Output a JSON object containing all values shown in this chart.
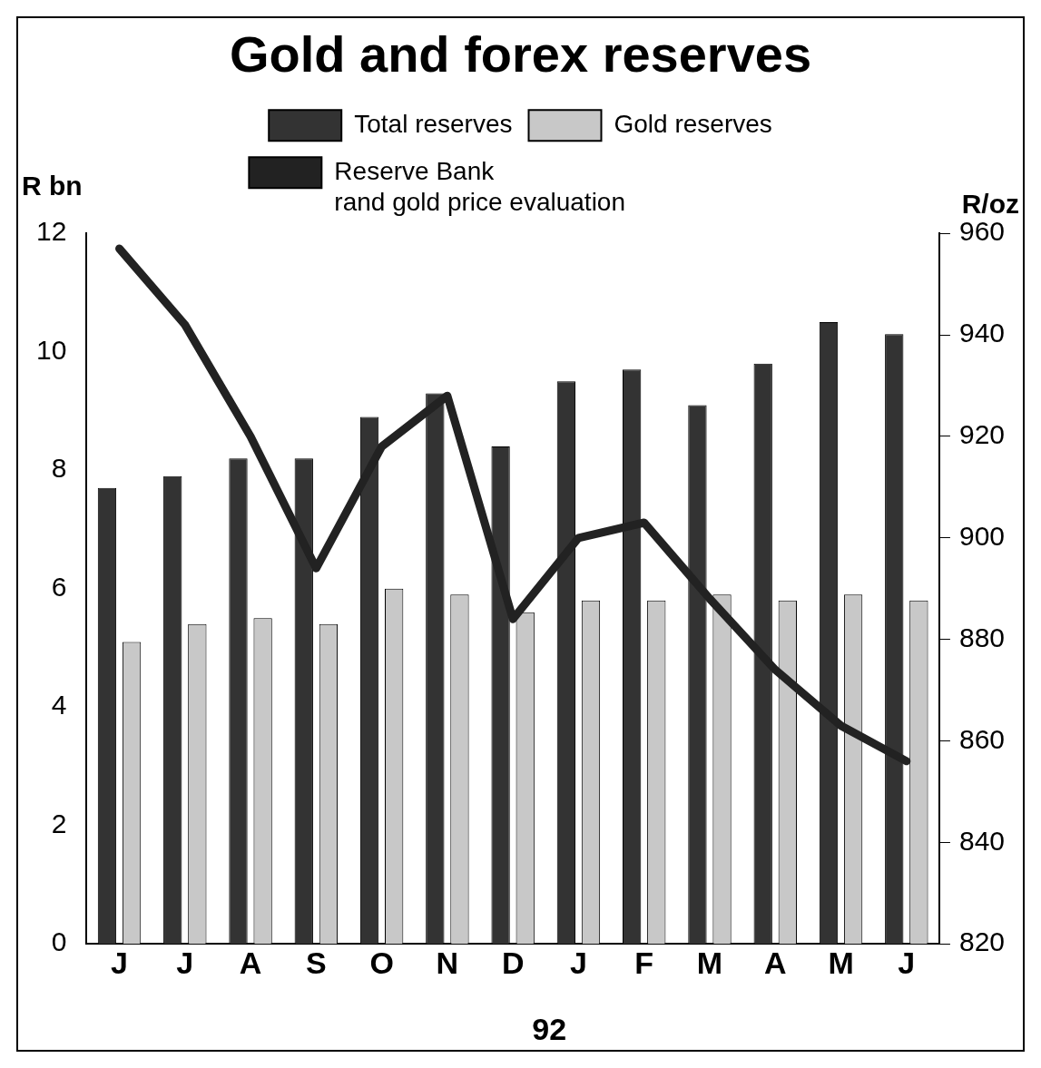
{
  "chart_data": {
    "type": "bar",
    "title": "Gold and forex reserves",
    "xlabel": "92",
    "ylabel": "R bn",
    "y2label": "R/oz",
    "categories": [
      "J",
      "J",
      "A",
      "S",
      "O",
      "N",
      "D",
      "J",
      "F",
      "M",
      "A",
      "M",
      "J"
    ],
    "series": [
      {
        "name": "Total reserves",
        "color": "#333333",
        "values": [
          7.7,
          7.9,
          8.2,
          8.2,
          8.9,
          9.3,
          8.4,
          9.5,
          9.7,
          9.1,
          9.8,
          10.5,
          10.3
        ]
      },
      {
        "name": "Gold reserves",
        "color": "#c8c8c8",
        "values": [
          5.1,
          5.4,
          5.5,
          5.4,
          6.0,
          5.9,
          5.6,
          5.8,
          5.8,
          5.9,
          5.8,
          5.9,
          5.8
        ]
      },
      {
        "name": "Reserve Bank\nrand gold price evaluation",
        "type": "line",
        "axis": "y2",
        "color": "#222222",
        "values": [
          957,
          942,
          920,
          894,
          918,
          928,
          884,
          900,
          903,
          888,
          874,
          863,
          856
        ]
      }
    ],
    "ylim": [
      0,
      12
    ],
    "yticks": [
      0,
      2,
      4,
      6,
      8,
      10,
      12
    ],
    "y2lim": [
      820,
      960
    ],
    "y2ticks": [
      820,
      840,
      860,
      880,
      900,
      920,
      940,
      960
    ],
    "grid": false,
    "legend": "top",
    "marker": "none"
  }
}
